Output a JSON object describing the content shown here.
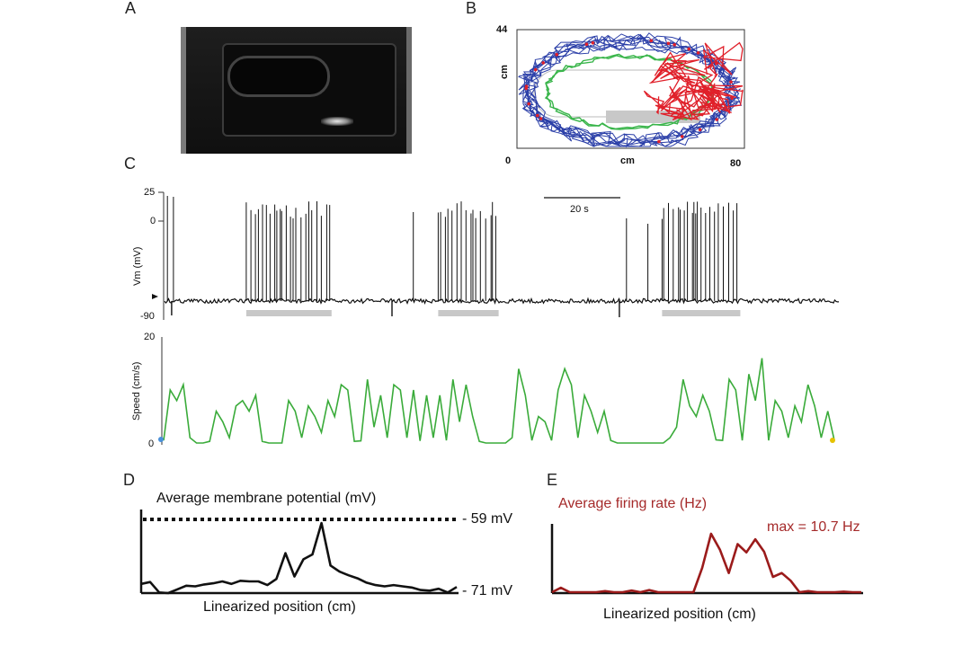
{
  "panels": {
    "a": "A",
    "b": "B",
    "c": "C",
    "d": "D",
    "e": "E"
  },
  "panel_b": {
    "y_top_label": "44",
    "y_axis_label": "cm",
    "x_origin_label": "0",
    "x_axis_label": "cm",
    "x_max_label": "80"
  },
  "panel_c": {
    "vm_tick_25": "25",
    "vm_tick_0": "0",
    "vm_tick_m90": "-90",
    "vm_axis_label": "Vm (mV)",
    "scalebar_label": "20 s",
    "speed_tick_20": "20",
    "speed_tick_0": "0",
    "speed_axis_label": "Speed (cm/s)"
  },
  "panel_d": {
    "title": "Average membrane potential (mV)",
    "max_label": "- 59 mV",
    "min_label": "- 71 mV",
    "xlabel": "Linearized position (cm)"
  },
  "panel_e": {
    "title": "Average firing rate (Hz)",
    "max_annotation": "max = 10.7 Hz",
    "xlabel": "Linearized position (cm)"
  },
  "colors": {
    "trace": "#111111",
    "speed": "#3aab3a",
    "rate": "#9b1b1b",
    "rate_text": "#a52a2a",
    "bar": "#c8c8c8",
    "path_blue": "#2b3fa8",
    "path_red": "#e0202a",
    "path_green": "#39b54a"
  },
  "chart_data": [
    {
      "type": "line",
      "title": "Vm (mV) trace",
      "ylabel": "Vm (mV)",
      "ylim": [
        -90,
        25
      ],
      "baseline_mV": -71,
      "scalebar_s": 20,
      "firing_bouts_s": [
        [
          23,
          47
        ],
        [
          77,
          94
        ],
        [
          140,
          162
        ]
      ]
    },
    {
      "type": "line",
      "title": "Speed",
      "ylabel": "Speed (cm/s)",
      "ylim": [
        0,
        20
      ],
      "values": [
        0.5,
        10,
        8,
        11,
        1,
        0,
        0,
        0.3,
        6,
        4,
        1,
        7,
        8,
        6,
        9,
        0.3,
        0,
        0,
        0,
        8,
        6,
        1,
        7,
        5,
        2,
        8,
        5,
        11,
        10,
        0.3,
        0.4,
        12,
        3,
        9,
        1,
        11,
        10,
        1,
        10,
        0.4,
        9,
        1,
        9,
        0.5,
        12,
        4,
        11,
        5,
        0.3,
        0,
        0,
        0,
        0,
        1,
        14,
        9,
        0.5,
        5,
        4,
        0.5,
        10,
        14,
        11,
        1,
        9,
        6,
        2,
        6,
        0.5,
        0,
        0,
        0,
        0,
        0,
        0,
        0,
        0,
        1,
        3,
        12,
        7,
        5,
        9,
        6,
        0.6,
        0.5,
        12,
        10,
        0.5,
        13,
        8,
        16,
        0.5,
        8,
        6,
        1,
        7,
        4,
        11,
        7,
        1,
        6,
        0.5
      ]
    },
    {
      "type": "line",
      "title": "Average membrane potential (mV)",
      "xlabel": "Linearized position (cm)",
      "ylim": [
        -71,
        -59
      ],
      "reference_mV": -59,
      "values": [
        -69.5,
        -69.2,
        -70.9,
        -71,
        -70.4,
        -69.8,
        -69.9,
        -69.6,
        -69.4,
        -69.1,
        -69.5,
        -69.0,
        -69.1,
        -69.1,
        -69.7,
        -68.7,
        -64.5,
        -68.3,
        -65.5,
        -64.7,
        -59.6,
        -66.5,
        -67.5,
        -68.1,
        -68.6,
        -69.3,
        -69.7,
        -69.9,
        -69.7,
        -69.9,
        -70.1,
        -70.5,
        -70.6,
        -70.3,
        -70.9,
        -70.0
      ]
    },
    {
      "type": "line",
      "title": "Average firing rate (Hz)",
      "xlabel": "Linearized position (cm)",
      "ylim": [
        0,
        10.7
      ],
      "max_hz": 10.7,
      "values": [
        0,
        0.8,
        0,
        0,
        0,
        0,
        0.2,
        0,
        0,
        0.3,
        0,
        0.4,
        0,
        0,
        0,
        0,
        0,
        4.5,
        10.7,
        7.8,
        3.5,
        8.8,
        7.3,
        9.7,
        7.4,
        2.8,
        3.5,
        2.1,
        0,
        0.2,
        0,
        0,
        0,
        0.1,
        0,
        0
      ]
    }
  ]
}
